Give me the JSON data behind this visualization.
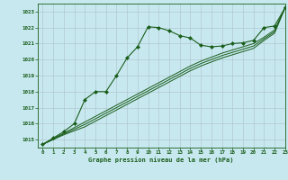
{
  "title": "Graphe pression niveau de la mer (hPa)",
  "bg_color": "#c8e8f0",
  "grid_color": "#b0c8d0",
  "line_color": "#1a5e1a",
  "marker_color": "#1a5e1a",
  "xlim": [
    -0.5,
    23
  ],
  "ylim": [
    1014.5,
    1023.5
  ],
  "yticks": [
    1015,
    1016,
    1017,
    1018,
    1019,
    1020,
    1021,
    1022,
    1023
  ],
  "xticks": [
    0,
    1,
    2,
    3,
    4,
    5,
    6,
    7,
    8,
    9,
    10,
    11,
    12,
    13,
    14,
    15,
    16,
    17,
    18,
    19,
    20,
    21,
    22,
    23
  ],
  "series1": [
    1014.7,
    1015.1,
    1015.5,
    1016.0,
    1017.5,
    1018.0,
    1018.0,
    1019.0,
    1020.1,
    1020.8,
    1022.05,
    1022.0,
    1021.8,
    1021.5,
    1021.35,
    1020.9,
    1020.8,
    1020.85,
    1021.0,
    1021.05,
    1021.2,
    1022.0,
    1022.1,
    1023.25
  ],
  "series2": [
    1014.7,
    1015.05,
    1015.4,
    1015.75,
    1016.1,
    1016.45,
    1016.8,
    1017.15,
    1017.5,
    1017.85,
    1018.2,
    1018.55,
    1018.9,
    1019.25,
    1019.6,
    1019.9,
    1020.15,
    1020.4,
    1020.6,
    1020.8,
    1021.0,
    1021.4,
    1021.85,
    1023.25
  ],
  "series3": [
    1014.7,
    1015.05,
    1015.35,
    1015.65,
    1015.95,
    1016.3,
    1016.65,
    1017.0,
    1017.35,
    1017.7,
    1018.05,
    1018.4,
    1018.75,
    1019.1,
    1019.45,
    1019.75,
    1020.0,
    1020.25,
    1020.45,
    1020.65,
    1020.85,
    1021.3,
    1021.75,
    1023.25
  ],
  "series4": [
    1014.7,
    1015.0,
    1015.3,
    1015.55,
    1015.8,
    1016.15,
    1016.5,
    1016.85,
    1017.2,
    1017.55,
    1017.9,
    1018.25,
    1018.6,
    1018.95,
    1019.3,
    1019.6,
    1019.85,
    1020.1,
    1020.3,
    1020.5,
    1020.7,
    1021.2,
    1021.65,
    1023.25
  ]
}
